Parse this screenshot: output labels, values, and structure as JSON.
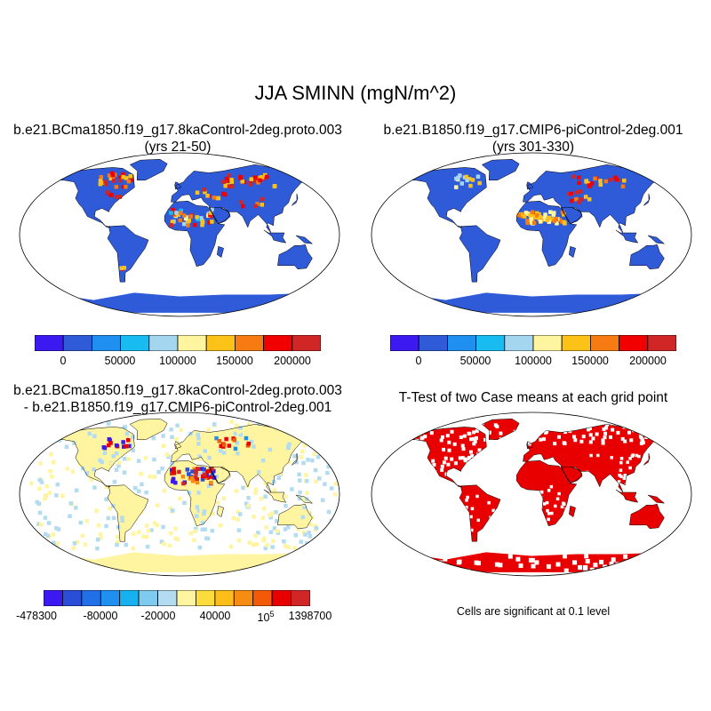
{
  "figure": {
    "title": "JJA SMINN (mgN/m^2)"
  },
  "panels": {
    "top_left": {
      "title_line1": "b.e21.BCma1850.f19_g17.8kaControl-2deg.proto.003",
      "title_line2": "(yrs 21-50)",
      "colorbar_labels": [
        "0",
        "50000",
        "100000",
        "150000",
        "200000"
      ]
    },
    "top_right": {
      "title_line1": "b.e21.B1850.f19_g17.CMIP6-piControl-2deg.001",
      "title_line2": "(yrs 301-330)",
      "colorbar_labels": [
        "0",
        "50000",
        "100000",
        "150000",
        "200000"
      ]
    },
    "bottom_left": {
      "title_line1": "b.e21.BCma1850.f19_g17.8kaControl-2deg.proto.003",
      "title_line2": "- b.e21.B1850.f19_g17.CMIP6-piControl-2deg.001",
      "colorbar_labels": [
        "-478300",
        "-80000",
        "-20000",
        "40000",
        "10",
        "5",
        "1398700"
      ]
    },
    "bottom_right": {
      "title_line1": "T-Test of two Case means at each grid point",
      "note": "Cells are significant at 0.1 level"
    }
  },
  "colors": {
    "abs_scale": [
      "#3b19f0",
      "#2f5ad8",
      "#1f8ff0",
      "#19bcf0",
      "#a5d6f0",
      "#fff5a0",
      "#fcc218",
      "#f57b12",
      "#f20000",
      "#d02626"
    ],
    "diff_scale": [
      "#3b19f0",
      "#2a4ed6",
      "#2270e8",
      "#1f8ff0",
      "#18b1f0",
      "#7fcbf0",
      "#b4dcf0",
      "#fff5a0",
      "#fbdc3c",
      "#fcbd18",
      "#f68c12",
      "#f35a08",
      "#e80000",
      "#d02626"
    ],
    "land_low": "#2f5ad8",
    "diff_neutral_a": "#fff5a0",
    "diff_neutral_b": "#b4dcf0",
    "significant": "#e80000"
  }
}
